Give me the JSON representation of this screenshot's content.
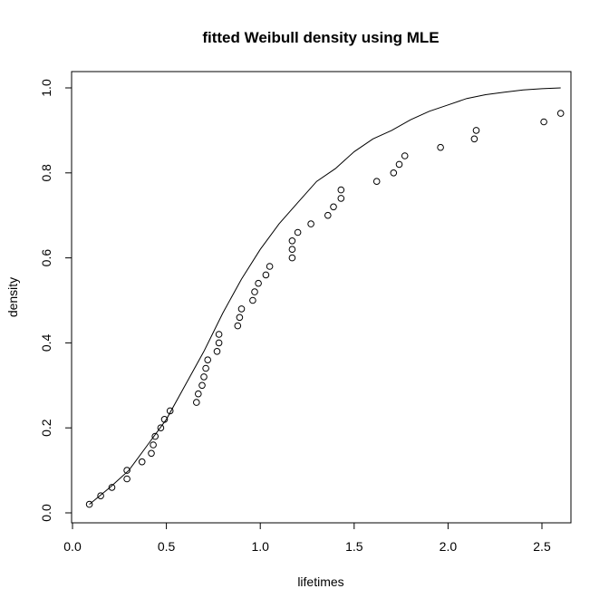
{
  "chart_data": {
    "type": "scatter",
    "title": "fitted Weibull density using MLE",
    "xlabel": "lifetimes",
    "ylabel": "density",
    "xlim": [
      0.0,
      2.6
    ],
    "ylim": [
      0.0,
      1.0
    ],
    "xticks": [
      "0.0",
      "0.5",
      "1.0",
      "1.5",
      "2.0",
      "2.5"
    ],
    "yticks": [
      "0.0",
      "0.2",
      "0.4",
      "0.6",
      "0.8",
      "1.0"
    ],
    "grid": false,
    "series": [
      {
        "kind": "points",
        "x": [
          0.09,
          0.15,
          0.21,
          0.29,
          0.29,
          0.37,
          0.42,
          0.43,
          0.44,
          0.47,
          0.49,
          0.52,
          0.66,
          0.67,
          0.69,
          0.7,
          0.71,
          0.72,
          0.77,
          0.78,
          0.78,
          0.88,
          0.89,
          0.9,
          0.96,
          0.97,
          0.99,
          1.03,
          1.05,
          1.17,
          1.17,
          1.17,
          1.2,
          1.27,
          1.36,
          1.39,
          1.43,
          1.43,
          1.62,
          1.71,
          1.74,
          1.77,
          1.96,
          2.14,
          2.15,
          2.51,
          2.6
        ],
        "y": [
          0.02,
          0.04,
          0.06,
          0.08,
          0.1,
          0.12,
          0.14,
          0.16,
          0.18,
          0.2,
          0.22,
          0.24,
          0.26,
          0.28,
          0.3,
          0.32,
          0.34,
          0.36,
          0.38,
          0.4,
          0.42,
          0.44,
          0.46,
          0.48,
          0.5,
          0.52,
          0.54,
          0.56,
          0.58,
          0.6,
          0.62,
          0.64,
          0.66,
          0.68,
          0.7,
          0.72,
          0.74,
          0.76,
          0.78,
          0.8,
          0.82,
          0.84,
          0.86,
          0.88,
          0.9,
          0.92,
          0.94
        ]
      },
      {
        "kind": "line",
        "x": [
          0.09,
          0.2,
          0.3,
          0.4,
          0.5,
          0.6,
          0.7,
          0.8,
          0.9,
          1.0,
          1.1,
          1.2,
          1.3,
          1.4,
          1.5,
          1.6,
          1.7,
          1.8,
          1.9,
          2.0,
          2.1,
          2.2,
          2.3,
          2.4,
          2.5,
          2.6
        ],
        "y": [
          0.02,
          0.06,
          0.1,
          0.16,
          0.22,
          0.3,
          0.38,
          0.47,
          0.55,
          0.62,
          0.68,
          0.73,
          0.78,
          0.81,
          0.85,
          0.88,
          0.9,
          0.925,
          0.945,
          0.96,
          0.975,
          0.984,
          0.99,
          0.995,
          0.998,
          1.0
        ]
      }
    ]
  }
}
